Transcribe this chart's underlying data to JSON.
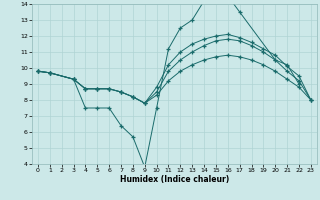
{
  "xlabel": "Humidex (Indice chaleur)",
  "bg_color": "#cce8e8",
  "line_color": "#1a6b6b",
  "xlim": [
    -0.5,
    23.5
  ],
  "ylim": [
    4,
    14
  ],
  "xticks": [
    0,
    1,
    2,
    3,
    4,
    5,
    6,
    7,
    8,
    9,
    10,
    11,
    12,
    13,
    14,
    15,
    16,
    17,
    18,
    19,
    20,
    21,
    22,
    23
  ],
  "yticks": [
    4,
    5,
    6,
    7,
    8,
    9,
    10,
    11,
    12,
    13,
    14
  ],
  "lines": [
    {
      "x": [
        0,
        1,
        3,
        4,
        5,
        6,
        7,
        8,
        9,
        10,
        11,
        12,
        13,
        14,
        15,
        16,
        17,
        20,
        21,
        22
      ],
      "y": [
        9.8,
        9.7,
        9.3,
        7.5,
        7.5,
        7.5,
        6.4,
        5.7,
        3.8,
        7.5,
        11.2,
        12.5,
        13.0,
        14.2,
        14.4,
        14.5,
        13.5,
        10.5,
        10.2,
        9.0
      ]
    },
    {
      "x": [
        0,
        1,
        3,
        4,
        5,
        6,
        7,
        8,
        9,
        10,
        11,
        12,
        13,
        14,
        15,
        16,
        17,
        18,
        19,
        20,
        21,
        22,
        23
      ],
      "y": [
        9.8,
        9.7,
        9.3,
        8.7,
        8.7,
        8.7,
        8.5,
        8.2,
        7.8,
        8.8,
        10.2,
        11.0,
        11.5,
        11.8,
        12.0,
        12.1,
        11.9,
        11.6,
        11.2,
        10.8,
        10.1,
        9.5,
        8.0
      ]
    },
    {
      "x": [
        0,
        1,
        3,
        4,
        5,
        6,
        7,
        8,
        9,
        10,
        11,
        12,
        13,
        14,
        15,
        16,
        17,
        18,
        19,
        20,
        21,
        22,
        23
      ],
      "y": [
        9.8,
        9.7,
        9.3,
        8.7,
        8.7,
        8.7,
        8.5,
        8.2,
        7.8,
        8.5,
        9.8,
        10.5,
        11.0,
        11.4,
        11.7,
        11.8,
        11.7,
        11.4,
        11.0,
        10.5,
        9.8,
        9.2,
        8.0
      ]
    },
    {
      "x": [
        0,
        1,
        3,
        4,
        5,
        6,
        7,
        8,
        9,
        10,
        11,
        12,
        13,
        14,
        15,
        16,
        17,
        18,
        19,
        20,
        21,
        22,
        23
      ],
      "y": [
        9.8,
        9.7,
        9.3,
        8.7,
        8.7,
        8.7,
        8.5,
        8.2,
        7.8,
        8.3,
        9.2,
        9.8,
        10.2,
        10.5,
        10.7,
        10.8,
        10.7,
        10.5,
        10.2,
        9.8,
        9.3,
        8.8,
        8.0
      ]
    }
  ]
}
